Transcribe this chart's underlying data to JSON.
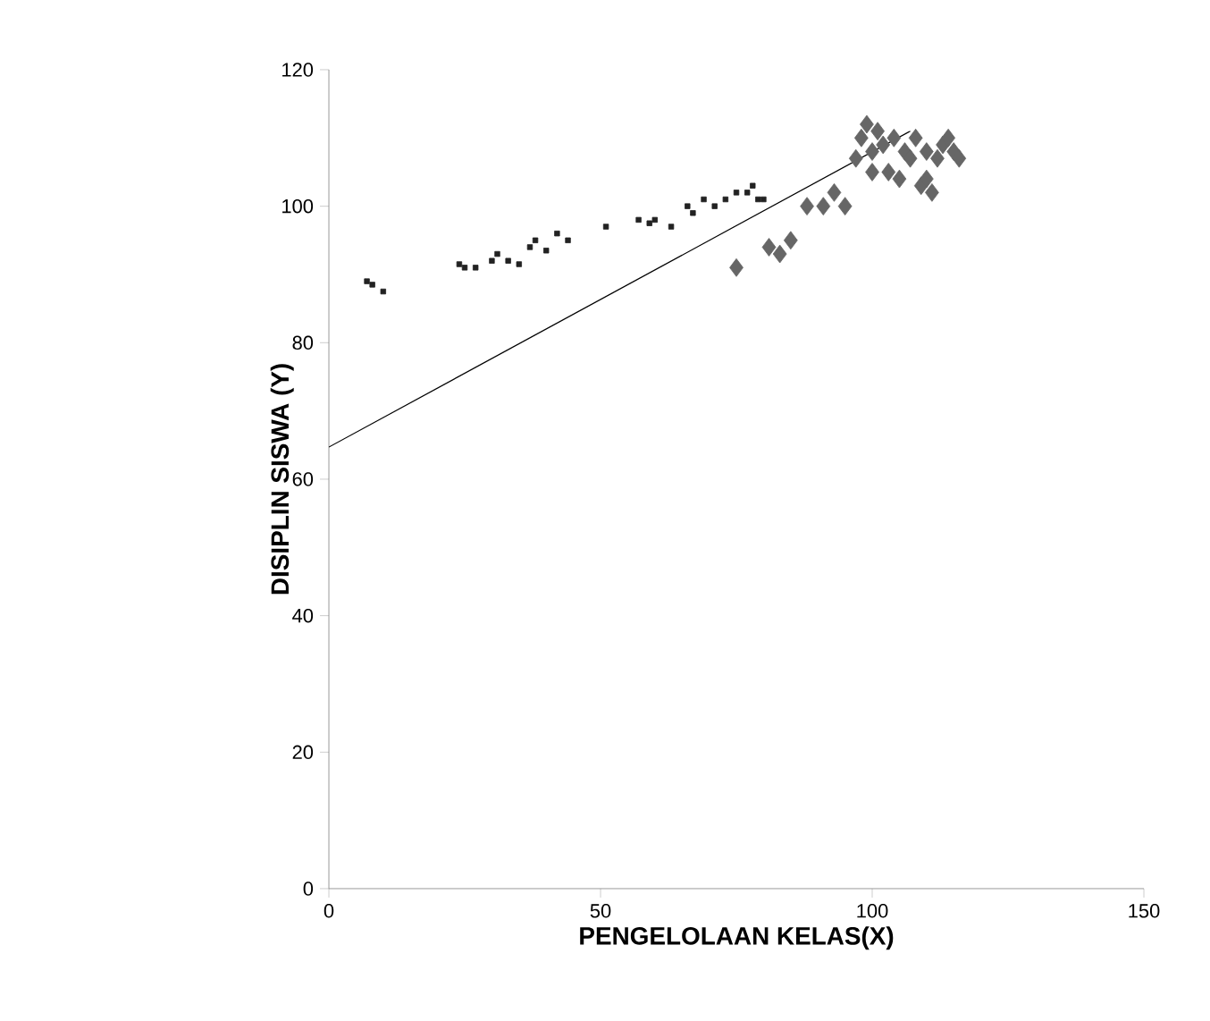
{
  "chart_data": {
    "type": "scatter",
    "xlabel": "PENGELOLAAN KELAS(X)",
    "ylabel": "DISIPLIN SISWA (Y)",
    "xlim": [
      0,
      150
    ],
    "ylim": [
      0,
      120
    ],
    "xticks": [
      0,
      50,
      100,
      150
    ],
    "yticks": [
      0,
      20,
      40,
      60,
      80,
      100,
      120
    ],
    "series": [
      {
        "marker": "square",
        "color": "#222222",
        "x": [
          7,
          8,
          10,
          24,
          25,
          27,
          30,
          31,
          33,
          35,
          37,
          38,
          40,
          42,
          44,
          51,
          57,
          59,
          60,
          63,
          66,
          67,
          69,
          71,
          73,
          75,
          77,
          79,
          80,
          78
        ],
        "values": [
          89,
          88.5,
          87.5,
          91.5,
          91,
          91,
          92,
          93,
          92,
          91.5,
          94,
          95,
          93.5,
          96,
          95,
          97,
          98,
          97.5,
          98,
          97,
          100,
          99,
          101,
          100,
          101,
          102,
          102,
          101,
          101,
          103
        ]
      },
      {
        "marker": "diamond",
        "color": "#666666",
        "x": [
          75,
          81,
          83,
          85,
          88,
          91,
          93,
          95,
          97,
          98,
          99,
          100,
          101,
          102,
          103,
          104,
          105,
          106,
          107,
          108,
          109,
          110,
          111,
          112,
          113,
          114,
          115,
          116,
          110,
          100
        ],
        "values": [
          91,
          94,
          93,
          95,
          100,
          100,
          102,
          100,
          107,
          110,
          112,
          108,
          111,
          109,
          105,
          110,
          104,
          108,
          107,
          110,
          103,
          104,
          102,
          107,
          109,
          110,
          108,
          107,
          108,
          105
        ]
      },
      {
        "type": "line",
        "marker": "none",
        "line_style": "solid",
        "color": "#000000",
        "x": [
          0,
          107
        ],
        "values": [
          64.7,
          111
        ]
      }
    ]
  }
}
